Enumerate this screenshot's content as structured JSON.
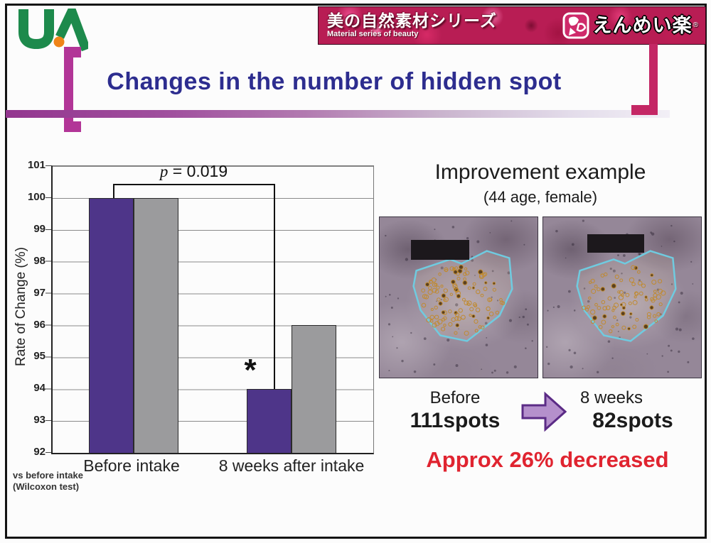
{
  "slide": {
    "title": "Changes in the number of hidden spot"
  },
  "logo": {
    "letters": "UA",
    "green": "#1d8a4c",
    "dot_color": "#ef8418"
  },
  "banner": {
    "series_title_jp": "美の自然素材シリーズ",
    "series_title_en": "Material series of beauty",
    "brand": "えんめい楽",
    "reg_mark": "®"
  },
  "chart_data": {
    "type": "bar",
    "title": "",
    "xlabel": "",
    "ylabel": "Rate of Change (%)",
    "ylim": [
      92,
      101
    ],
    "yticks": [
      "101",
      "100",
      "99",
      "98",
      "97",
      "96",
      "95",
      "94",
      "93",
      "92"
    ],
    "categories": [
      "Before intake",
      "8 weeks after intake"
    ],
    "series": [
      {
        "name": "purple",
        "color": "#4e3589",
        "values": [
          100,
          94
        ]
      },
      {
        "name": "gray",
        "color": "#9b9b9d",
        "values": [
          100,
          96
        ]
      }
    ],
    "grid": true,
    "legend_position": "none",
    "significance": {
      "label": "p = 0.019",
      "label_var": "p",
      "label_rest": "= 0.019",
      "marker": "*"
    },
    "footnote_line1": "vs before intake",
    "footnote_line2": "(Wilcoxon test)"
  },
  "example": {
    "heading": "Improvement example",
    "subject": "(44 age, female)",
    "before_label": "Before",
    "before_value": "111spots",
    "after_label": "8 weeks",
    "after_value": "82spots",
    "spots_before": 111,
    "spots_after": 82,
    "conclusion": "Approx 26% decreased",
    "conclusion_color": "#e02430",
    "arrow_fill": "#b590cc",
    "arrow_stroke": "#5b2b86"
  }
}
